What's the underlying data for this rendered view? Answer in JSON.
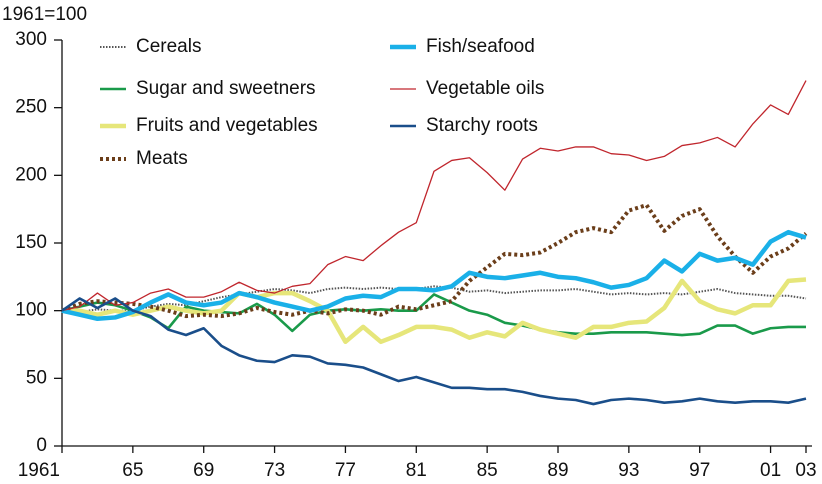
{
  "chart_data": {
    "type": "line",
    "y_label": "1961=100",
    "x": [
      1961,
      1962,
      1963,
      1964,
      1965,
      1966,
      1967,
      1968,
      1969,
      1970,
      1971,
      1972,
      1973,
      1974,
      1975,
      1976,
      1977,
      1978,
      1979,
      1980,
      1981,
      1982,
      1983,
      1984,
      1985,
      1986,
      1987,
      1988,
      1989,
      1990,
      1991,
      1992,
      1993,
      1994,
      1995,
      1996,
      1997,
      1998,
      1999,
      2000,
      2001,
      2002,
      2003
    ],
    "xlim": [
      1961,
      2003
    ],
    "xticks": [
      1961,
      {
        "value": 1965,
        "label": "65"
      },
      {
        "value": 1969,
        "label": "69"
      },
      {
        "value": 1973,
        "label": "73"
      },
      {
        "value": 1977,
        "label": "77"
      },
      {
        "value": 1981,
        "label": "81"
      },
      {
        "value": 1985,
        "label": "85"
      },
      {
        "value": 1989,
        "label": "89"
      },
      {
        "value": 1993,
        "label": "93"
      },
      {
        "value": 1997,
        "label": "97"
      },
      {
        "value": 2001,
        "label": "01"
      },
      {
        "value": 2003,
        "label": "03"
      }
    ],
    "ylim": [
      0,
      300
    ],
    "yticks": [
      0,
      50,
      100,
      150,
      200,
      250,
      300
    ],
    "series": [
      {
        "name": "Cereals",
        "color": "#555555",
        "style": "dotted-thin",
        "values": [
          100,
          99,
          101,
          100,
          100,
          103,
          105,
          104,
          107,
          110,
          112,
          114,
          116,
          115,
          113,
          116,
          117,
          116,
          117,
          116,
          116,
          118,
          117,
          114,
          115,
          113,
          114,
          115,
          115,
          116,
          114,
          112,
          113,
          112,
          113,
          112,
          114,
          116,
          113,
          112,
          111,
          111,
          109
        ]
      },
      {
        "name": "Sugar and sweetners",
        "color": "#1a9a4a",
        "style": "medium",
        "values": [
          100,
          103,
          106,
          104,
          100,
          95,
          87,
          103,
          100,
          99,
          98,
          105,
          97,
          85,
          97,
          100,
          101,
          100,
          101,
          100,
          100,
          112,
          106,
          100,
          97,
          91,
          89,
          86,
          84,
          83,
          83,
          84,
          84,
          84,
          83,
          82,
          83,
          89,
          89,
          83,
          87,
          88,
          88
        ]
      },
      {
        "name": "Fruits and vegetables",
        "color": "#e6e67a",
        "style": "thick",
        "values": [
          100,
          100,
          97,
          100,
          97,
          100,
          103,
          100,
          98,
          100,
          113,
          110,
          113,
          113,
          107,
          100,
          77,
          88,
          77,
          82,
          88,
          88,
          86,
          80,
          84,
          81,
          91,
          86,
          83,
          80,
          88,
          88,
          91,
          92,
          102,
          122,
          107,
          101,
          98,
          104,
          104,
          122,
          123
        ]
      },
      {
        "name": "Meats",
        "color": "#6b3e1a",
        "style": "dotted-thick",
        "values": [
          100,
          105,
          107,
          106,
          105,
          103,
          100,
          96,
          97,
          96,
          98,
          102,
          99,
          97,
          100,
          98,
          101,
          100,
          97,
          103,
          101,
          104,
          107,
          122,
          132,
          142,
          141,
          143,
          150,
          158,
          161,
          158,
          174,
          178,
          159,
          170,
          175,
          155,
          140,
          128,
          140,
          146,
          157
        ]
      },
      {
        "name": "Fish/seafood",
        "color": "#1ab0e8",
        "style": "thick",
        "values": [
          100,
          97,
          94,
          95,
          99,
          106,
          112,
          106,
          104,
          106,
          113,
          110,
          106,
          103,
          100,
          103,
          109,
          111,
          110,
          116,
          116,
          115,
          118,
          128,
          125,
          124,
          126,
          128,
          125,
          124,
          121,
          117,
          119,
          124,
          137,
          129,
          142,
          137,
          139,
          134,
          151,
          158,
          154
        ]
      },
      {
        "name": "Vegetable oils",
        "color": "#c0262d",
        "style": "thin",
        "values": [
          100,
          103,
          113,
          104,
          106,
          113,
          116,
          110,
          110,
          114,
          121,
          115,
          113,
          118,
          120,
          134,
          140,
          137,
          148,
          158,
          165,
          203,
          211,
          213,
          202,
          189,
          212,
          220,
          218,
          221,
          221,
          216,
          215,
          211,
          214,
          222,
          224,
          228,
          221,
          238,
          252,
          245,
          270
        ]
      },
      {
        "name": "Starchy roots",
        "color": "#1a4e8a",
        "style": "medium",
        "values": [
          100,
          109,
          102,
          109,
          100,
          96,
          86,
          82,
          87,
          74,
          67,
          63,
          62,
          67,
          66,
          61,
          60,
          58,
          53,
          48,
          51,
          47,
          43,
          43,
          42,
          42,
          40,
          37,
          35,
          34,
          31,
          34,
          35,
          34,
          32,
          33,
          35,
          33,
          32,
          33,
          33,
          32,
          35
        ]
      }
    ]
  }
}
